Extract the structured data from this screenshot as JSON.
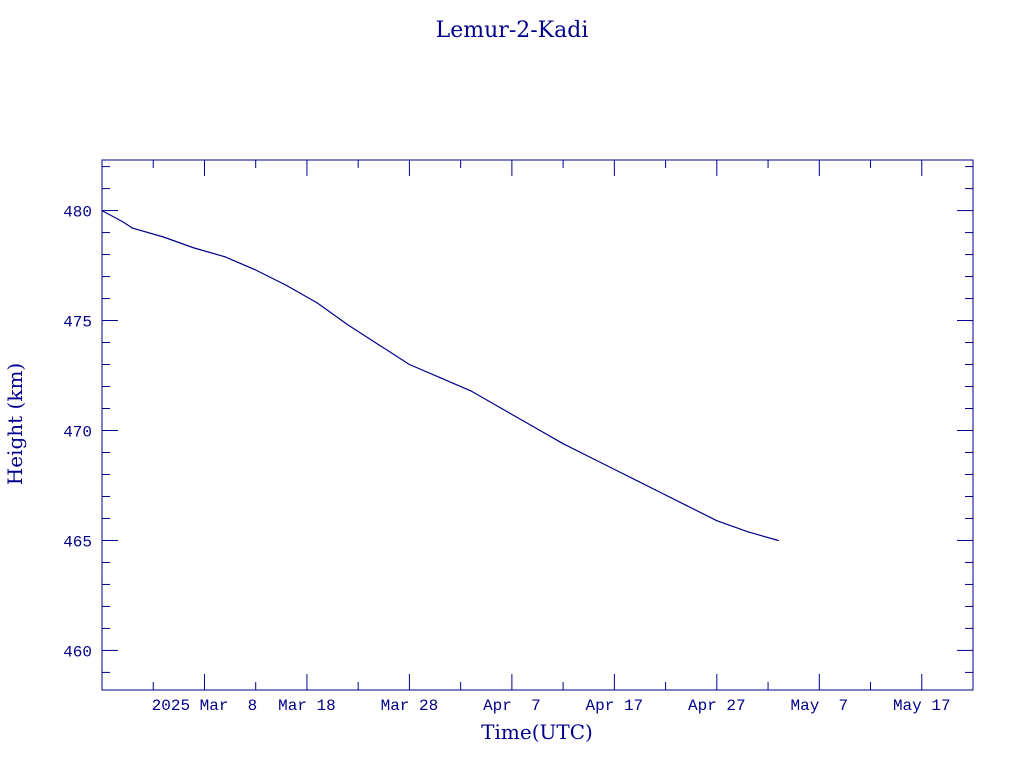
{
  "chart_data": {
    "type": "line",
    "title": "Lemur-2-Kadi",
    "xlabel": "Time(UTC)",
    "ylabel": "Height (km)",
    "x_tick_labels": [
      "2025 Mar  8",
      "Mar 18",
      "Mar 28",
      "Apr  7",
      "Apr 17",
      "Apr 27",
      "May  7",
      "May 17"
    ],
    "y_tick_labels": [
      "460",
      "465",
      "470",
      "475",
      "480"
    ],
    "xlim": [
      "2025-02-26",
      "2025-05-22"
    ],
    "ylim": [
      458.2,
      482.3
    ],
    "y_major_ticks": [
      460,
      465,
      470,
      475,
      480
    ],
    "y_minor_step": 1,
    "x_major_ticks": [
      "2025-03-08",
      "2025-03-18",
      "2025-03-28",
      "2025-04-07",
      "2025-04-17",
      "2025-04-27",
      "2025-05-07",
      "2025-05-17"
    ],
    "x_minor_ticks": [
      "2025-03-03",
      "2025-03-13",
      "2025-03-23",
      "2025-04-02",
      "2025-04-12",
      "2025-04-22",
      "2025-05-02",
      "2025-05-12"
    ],
    "grid": false,
    "color": "#00008b",
    "series": [
      {
        "x": [
          "2025-02-26",
          "2025-02-28",
          "2025-03-01",
          "2025-03-04",
          "2025-03-07",
          "2025-03-10",
          "2025-03-13",
          "2025-03-16",
          "2025-03-19",
          "2025-03-22",
          "2025-03-25",
          "2025-03-28",
          "2025-03-31",
          "2025-04-03",
          "2025-04-06",
          "2025-04-09",
          "2025-04-12",
          "2025-04-15",
          "2025-04-18",
          "2025-04-21",
          "2025-04-24",
          "2025-04-27",
          "2025-04-30",
          "2025-05-03"
        ],
        "y": [
          480.0,
          479.5,
          479.2,
          478.8,
          478.3,
          477.9,
          477.3,
          476.6,
          475.8,
          474.8,
          473.9,
          473.0,
          472.4,
          471.8,
          471.0,
          470.2,
          469.4,
          468.7,
          468.0,
          467.3,
          466.6,
          465.9,
          465.4,
          465.0
        ]
      }
    ]
  }
}
